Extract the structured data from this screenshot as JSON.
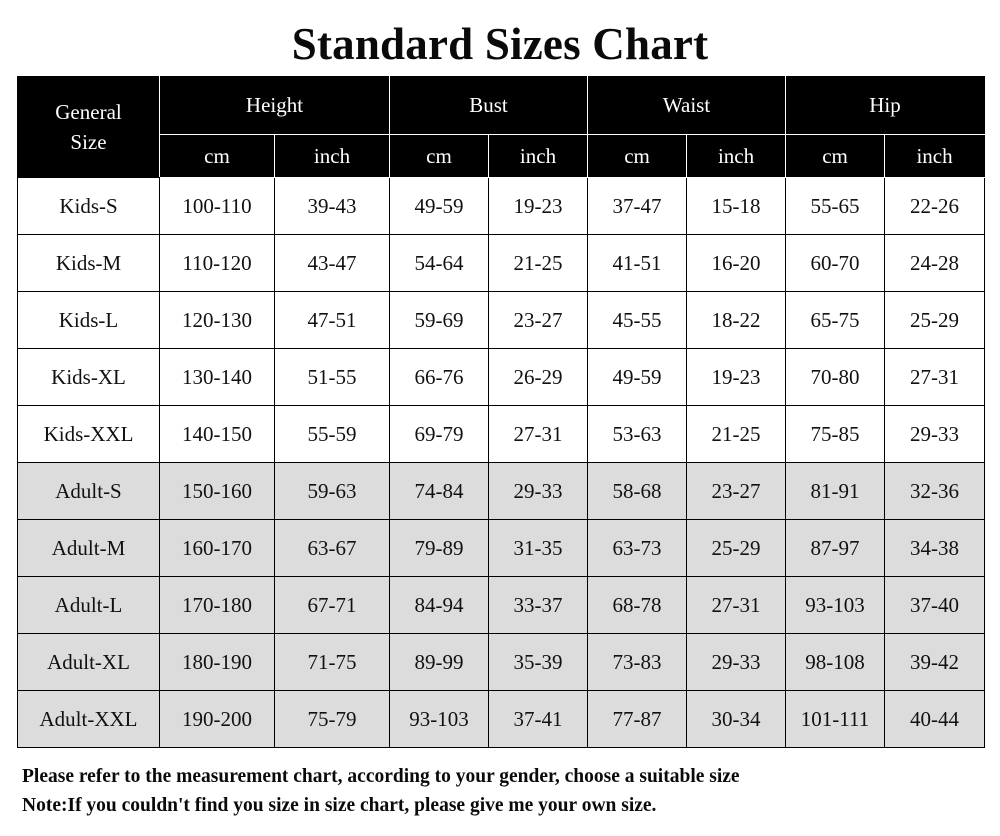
{
  "title": "Standard Sizes Chart",
  "table": {
    "corner_label_line1": "General",
    "corner_label_line2": "Size",
    "groups": [
      "Height",
      "Bust",
      "Waist",
      "Hip"
    ],
    "units": [
      "cm",
      "inch",
      "cm",
      "inch",
      "cm",
      "inch",
      "cm",
      "inch"
    ],
    "rows": [
      {
        "size": "Kids-S",
        "group": "kids",
        "values": [
          "100-110",
          "39-43",
          "49-59",
          "19-23",
          "37-47",
          "15-18",
          "55-65",
          "22-26"
        ]
      },
      {
        "size": "Kids-M",
        "group": "kids",
        "values": [
          "110-120",
          "43-47",
          "54-64",
          "21-25",
          "41-51",
          "16-20",
          "60-70",
          "24-28"
        ]
      },
      {
        "size": "Kids-L",
        "group": "kids",
        "values": [
          "120-130",
          "47-51",
          "59-69",
          "23-27",
          "45-55",
          "18-22",
          "65-75",
          "25-29"
        ]
      },
      {
        "size": "Kids-XL",
        "group": "kids",
        "values": [
          "130-140",
          "51-55",
          "66-76",
          "26-29",
          "49-59",
          "19-23",
          "70-80",
          "27-31"
        ]
      },
      {
        "size": "Kids-XXL",
        "group": "kids",
        "values": [
          "140-150",
          "55-59",
          "69-79",
          "27-31",
          "53-63",
          "21-25",
          "75-85",
          "29-33"
        ]
      },
      {
        "size": "Adult-S",
        "group": "adult",
        "values": [
          "150-160",
          "59-63",
          "74-84",
          "29-33",
          "58-68",
          "23-27",
          "81-91",
          "32-36"
        ]
      },
      {
        "size": "Adult-M",
        "group": "adult",
        "values": [
          "160-170",
          "63-67",
          "79-89",
          "31-35",
          "63-73",
          "25-29",
          "87-97",
          "34-38"
        ]
      },
      {
        "size": "Adult-L",
        "group": "adult",
        "values": [
          "170-180",
          "67-71",
          "84-94",
          "33-37",
          "68-78",
          "27-31",
          "93-103",
          "37-40"
        ]
      },
      {
        "size": "Adult-XL",
        "group": "adult",
        "values": [
          "180-190",
          "71-75",
          "89-99",
          "35-39",
          "73-83",
          "29-33",
          "98-108",
          "39-42"
        ]
      },
      {
        "size": "Adult-XXL",
        "group": "adult",
        "values": [
          "190-200",
          "75-79",
          "93-103",
          "37-41",
          "77-87",
          "30-34",
          "101-111",
          "40-44"
        ]
      }
    ]
  },
  "notes": {
    "line1": "Please refer to the measurement chart, according to your gender, choose a suitable size",
    "line2": "Note:If you couldn't find you size in size chart, please give me your own size."
  },
  "colors": {
    "header_bg": "#000000",
    "header_text": "#ffffff",
    "kids_row_bg": "#ffffff",
    "adult_row_bg": "#dcdcdc"
  }
}
